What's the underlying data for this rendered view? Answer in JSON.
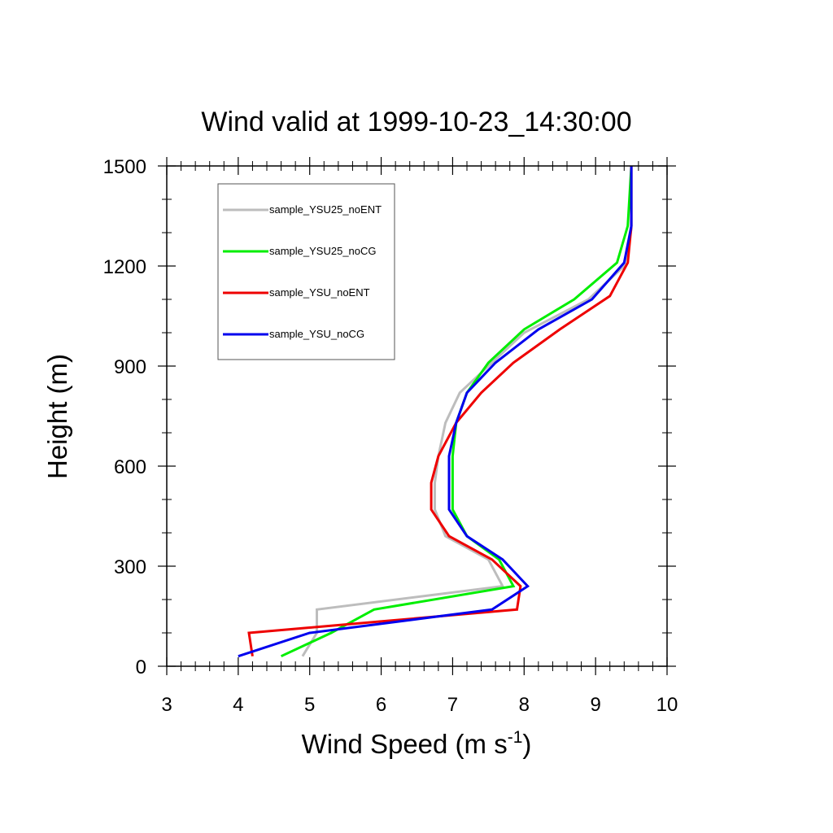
{
  "chart_data": {
    "type": "line",
    "title": "Wind valid at 1999-10-23_14:30:00",
    "xlabel": "Wind Speed (m s",
    "xlabel_sup": "-1",
    "xlabel_end": ")",
    "ylabel": "Height (m)",
    "xlim": [
      3,
      10
    ],
    "ylim": [
      0,
      1500
    ],
    "x_ticks": [
      "3",
      "4",
      "5",
      "6",
      "7",
      "8",
      "9",
      "10"
    ],
    "y_ticks": [
      "0",
      "300",
      "600",
      "900",
      "1200",
      "1500"
    ],
    "legend_position": "top-left",
    "series": [
      {
        "name": "sample_YSU25_noENT",
        "color": "#bdbdbd",
        "points": [
          [
            4.9,
            30
          ],
          [
            5.1,
            100
          ],
          [
            5.1,
            170
          ],
          [
            7.7,
            240
          ],
          [
            7.5,
            320
          ],
          [
            6.9,
            390
          ],
          [
            6.75,
            470
          ],
          [
            6.75,
            550
          ],
          [
            6.8,
            630
          ],
          [
            6.9,
            730
          ],
          [
            7.1,
            820
          ],
          [
            7.5,
            900
          ],
          [
            8.0,
            1000
          ],
          [
            8.9,
            1100
          ],
          [
            9.4,
            1200
          ],
          [
            9.5,
            1310
          ],
          [
            9.5,
            1500
          ]
        ]
      },
      {
        "name": "sample_YSU25_noCG",
        "color": "#00ee00",
        "points": [
          [
            4.6,
            30
          ],
          [
            5.3,
            100
          ],
          [
            5.9,
            170
          ],
          [
            7.85,
            240
          ],
          [
            7.65,
            320
          ],
          [
            7.2,
            390
          ],
          [
            7.0,
            470
          ],
          [
            7.0,
            550
          ],
          [
            7.0,
            630
          ],
          [
            7.05,
            730
          ],
          [
            7.2,
            820
          ],
          [
            7.5,
            910
          ],
          [
            8.0,
            1010
          ],
          [
            8.7,
            1100
          ],
          [
            9.3,
            1210
          ],
          [
            9.45,
            1320
          ],
          [
            9.5,
            1500
          ]
        ]
      },
      {
        "name": "sample_YSU_noENT",
        "color": "#ee0000",
        "points": [
          [
            4.2,
            30
          ],
          [
            4.15,
            100
          ],
          [
            7.9,
            170
          ],
          [
            7.95,
            240
          ],
          [
            7.55,
            320
          ],
          [
            6.95,
            390
          ],
          [
            6.7,
            470
          ],
          [
            6.7,
            550
          ],
          [
            6.8,
            630
          ],
          [
            7.05,
            730
          ],
          [
            7.4,
            820
          ],
          [
            7.85,
            910
          ],
          [
            8.5,
            1010
          ],
          [
            9.2,
            1110
          ],
          [
            9.45,
            1210
          ],
          [
            9.5,
            1320
          ],
          [
            9.5,
            1500
          ]
        ]
      },
      {
        "name": "sample_YSU_noCG",
        "color": "#0000ee",
        "points": [
          [
            4.0,
            30
          ],
          [
            5.0,
            100
          ],
          [
            7.55,
            170
          ],
          [
            8.05,
            240
          ],
          [
            7.7,
            320
          ],
          [
            7.2,
            390
          ],
          [
            6.95,
            470
          ],
          [
            6.95,
            550
          ],
          [
            6.95,
            630
          ],
          [
            7.05,
            730
          ],
          [
            7.2,
            820
          ],
          [
            7.6,
            910
          ],
          [
            8.2,
            1010
          ],
          [
            8.95,
            1100
          ],
          [
            9.4,
            1210
          ],
          [
            9.5,
            1320
          ],
          [
            9.5,
            1500
          ]
        ]
      }
    ]
  }
}
